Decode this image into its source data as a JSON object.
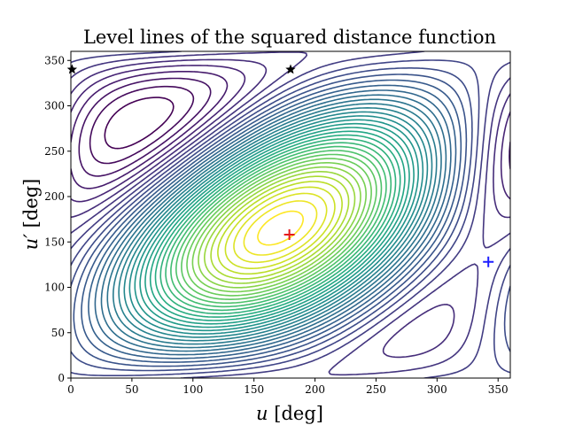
{
  "chart_data": {
    "type": "contour",
    "title": "Level lines of the squared distance function",
    "xlabel_symbol": "u",
    "xlabel_unit": " [deg]",
    "ylabel_symbol": "u′",
    "ylabel_unit": " [deg]",
    "xlim": [
      0,
      360
    ],
    "ylim": [
      0,
      360
    ],
    "xticks": [
      0,
      50,
      100,
      150,
      200,
      250,
      300,
      350
    ],
    "yticks": [
      0,
      50,
      100,
      150,
      200,
      250,
      300,
      350
    ],
    "grid": false,
    "colormap": "viridis",
    "colors": {
      "viridis_low": "#440154",
      "viridis_mid": "#21918c",
      "viridis_high": "#fde725",
      "minimum_marker": "#e41a1c",
      "blue_marker": "#1f1fff",
      "star_marker": "#000000"
    },
    "markers": [
      {
        "type": "plus",
        "color": "red",
        "x": 179,
        "y": 158
      },
      {
        "type": "plus",
        "color": "blue",
        "x": 342,
        "y": 128
      },
      {
        "type": "star",
        "color": "black",
        "x": 1,
        "y": 340
      },
      {
        "type": "star",
        "color": "black",
        "x": 180,
        "y": 340
      }
    ]
  }
}
